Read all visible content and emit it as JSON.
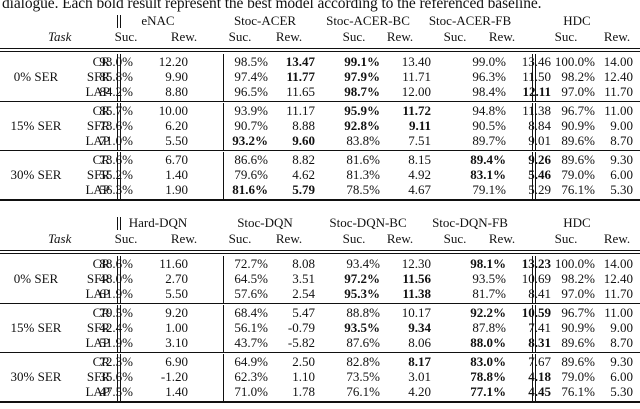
{
  "caption": "dialogue. Each bold result represent the best model according to the referenced baseline.",
  "task_label": "Task",
  "metric_labels": {
    "suc": "Suc.",
    "rew": "Rew."
  },
  "tables": [
    {
      "models": [
        "eNAC",
        "Stoc-ACER",
        "Stoc-ACER-BC",
        "Stoc-ACER-FB",
        "HDC"
      ],
      "groups": [
        {
          "label": "0% SER",
          "rows": [
            {
              "task": "CR",
              "cells": [
                [
                  "93.0%",
                  0
                ],
                [
                  "12.20",
                  0
                ],
                [
                  "98.5%",
                  0
                ],
                [
                  "13.47",
                  1
                ],
                [
                  "99.1%",
                  1
                ],
                [
                  "13.40",
                  0
                ],
                [
                  "99.0%",
                  0
                ],
                [
                  "13.46",
                  0
                ],
                [
                  "100.0%",
                  0
                ],
                [
                  "14.00",
                  0
                ]
              ]
            },
            {
              "task": "SFR",
              "cells": [
                [
                  "85.8%",
                  0
                ],
                [
                  "9.90",
                  0
                ],
                [
                  "97.4%",
                  0
                ],
                [
                  "11.77",
                  1
                ],
                [
                  "97.9%",
                  1
                ],
                [
                  "11.71",
                  0
                ],
                [
                  "96.3%",
                  0
                ],
                [
                  "11.50",
                  0
                ],
                [
                  "98.2%",
                  0
                ],
                [
                  "12.40",
                  0
                ]
              ]
            },
            {
              "task": "LAP",
              "cells": [
                [
                  "84.2%",
                  0
                ],
                [
                  "8.80",
                  0
                ],
                [
                  "96.5%",
                  0
                ],
                [
                  "11.65",
                  0
                ],
                [
                  "98.7%",
                  1
                ],
                [
                  "12.00",
                  0
                ],
                [
                  "98.4%",
                  0
                ],
                [
                  "12.11",
                  1
                ],
                [
                  "97.0%",
                  0
                ],
                [
                  "11.70",
                  0
                ]
              ]
            }
          ]
        },
        {
          "label": "15% SER",
          "rows": [
            {
              "task": "CR",
              "cells": [
                [
                  "85.7%",
                  0
                ],
                [
                  "10.00",
                  0
                ],
                [
                  "93.9%",
                  0
                ],
                [
                  "11.17",
                  0
                ],
                [
                  "95.9%",
                  1
                ],
                [
                  "11.72",
                  1
                ],
                [
                  "94.8%",
                  0
                ],
                [
                  "11.38",
                  0
                ],
                [
                  "96.7%",
                  0
                ],
                [
                  "11.00",
                  0
                ]
              ]
            },
            {
              "task": "SFR",
              "cells": [
                [
                  "73.6%",
                  0
                ],
                [
                  "6.20",
                  0
                ],
                [
                  "90.7%",
                  0
                ],
                [
                  "8.88",
                  0
                ],
                [
                  "92.8%",
                  1
                ],
                [
                  "9.11",
                  1
                ],
                [
                  "90.5%",
                  0
                ],
                [
                  "8.84",
                  0
                ],
                [
                  "90.9%",
                  0
                ],
                [
                  "9.00",
                  0
                ]
              ]
            },
            {
              "task": "LAP",
              "cells": [
                [
                  "71.0%",
                  0
                ],
                [
                  "5.50",
                  0
                ],
                [
                  "93.2%",
                  1
                ],
                [
                  "9.60",
                  1
                ],
                [
                  "83.8%",
                  0
                ],
                [
                  "7.51",
                  0
                ],
                [
                  "89.7%",
                  0
                ],
                [
                  "9.01",
                  0
                ],
                [
                  "89.6%",
                  0
                ],
                [
                  "8.70",
                  0
                ]
              ]
            }
          ]
        },
        {
          "label": "30% SER",
          "rows": [
            {
              "task": "CR",
              "cells": [
                [
                  "73.6%",
                  0
                ],
                [
                  "6.70",
                  0
                ],
                [
                  "86.6%",
                  0
                ],
                [
                  "8.82",
                  0
                ],
                [
                  "81.6%",
                  0
                ],
                [
                  "8.15",
                  0
                ],
                [
                  "89.4%",
                  1
                ],
                [
                  "9.26",
                  1
                ],
                [
                  "89.6%",
                  0
                ],
                [
                  "9.30",
                  0
                ]
              ]
            },
            {
              "task": "SFR",
              "cells": [
                [
                  "55.2%",
                  0
                ],
                [
                  "1.40",
                  0
                ],
                [
                  "79.6%",
                  0
                ],
                [
                  "4.62",
                  0
                ],
                [
                  "81.3%",
                  0
                ],
                [
                  "4.92",
                  0
                ],
                [
                  "83.1%",
                  1
                ],
                [
                  "5.46",
                  1
                ],
                [
                  "79.0%",
                  0
                ],
                [
                  "6.00",
                  0
                ]
              ]
            },
            {
              "task": "LAP",
              "cells": [
                [
                  "56.3%",
                  0
                ],
                [
                  "1.90",
                  0
                ],
                [
                  "81.6%",
                  1
                ],
                [
                  "5.79",
                  1
                ],
                [
                  "78.5%",
                  0
                ],
                [
                  "4.67",
                  0
                ],
                [
                  "79.1%",
                  0
                ],
                [
                  "5.29",
                  0
                ],
                [
                  "76.1%",
                  0
                ],
                [
                  "5.30",
                  0
                ]
              ]
            }
          ]
        }
      ]
    },
    {
      "models": [
        "Hard-DQN",
        "Stoc-DQN",
        "Stoc-DQN-BC",
        "Stoc-DQN-FB",
        "HDC"
      ],
      "groups": [
        {
          "label": "0% SER",
          "rows": [
            {
              "task": "CR",
              "cells": [
                [
                  "88.6%",
                  0
                ],
                [
                  "11.60",
                  0
                ],
                [
                  "72.7%",
                  0
                ],
                [
                  "8.08",
                  0
                ],
                [
                  "93.4%",
                  0
                ],
                [
                  "12.30",
                  0
                ],
                [
                  "98.1%",
                  1
                ],
                [
                  "13.23",
                  1
                ],
                [
                  "100.0%",
                  0
                ],
                [
                  "14.00",
                  0
                ]
              ]
            },
            {
              "task": "SFR",
              "cells": [
                [
                  "48.0%",
                  0
                ],
                [
                  "2.70",
                  0
                ],
                [
                  "64.5%",
                  0
                ],
                [
                  "3.51",
                  0
                ],
                [
                  "97.2%",
                  1
                ],
                [
                  "11.56",
                  1
                ],
                [
                  "93.5%",
                  0
                ],
                [
                  "10.69",
                  0
                ],
                [
                  "98.2%",
                  0
                ],
                [
                  "12.40",
                  0
                ]
              ]
            },
            {
              "task": "LAP",
              "cells": [
                [
                  "61.9%",
                  0
                ],
                [
                  "5.50",
                  0
                ],
                [
                  "57.6%",
                  0
                ],
                [
                  "2.54",
                  0
                ],
                [
                  "95.3%",
                  1
                ],
                [
                  "11.38",
                  1
                ],
                [
                  "81.7%",
                  0
                ],
                [
                  "8.41",
                  0
                ],
                [
                  "97.0%",
                  0
                ],
                [
                  "11.70",
                  0
                ]
              ]
            }
          ]
        },
        {
          "label": "15% SER",
          "rows": [
            {
              "task": "CR",
              "cells": [
                [
                  "79.5%",
                  0
                ],
                [
                  "9.20",
                  0
                ],
                [
                  "68.4%",
                  0
                ],
                [
                  "5.47",
                  0
                ],
                [
                  "88.8%",
                  0
                ],
                [
                  "10.17",
                  0
                ],
                [
                  "92.2%",
                  1
                ],
                [
                  "10.59",
                  1
                ],
                [
                  "96.7%",
                  0
                ],
                [
                  "11.00",
                  0
                ]
              ]
            },
            {
              "task": "SFR",
              "cells": [
                [
                  "42.4%",
                  0
                ],
                [
                  "1.00",
                  0
                ],
                [
                  "56.1%",
                  0
                ],
                [
                  "-0.79",
                  0
                ],
                [
                  "93.5%",
                  1
                ],
                [
                  "9.34",
                  1
                ],
                [
                  "87.8%",
                  0
                ],
                [
                  "7.41",
                  0
                ],
                [
                  "90.9%",
                  0
                ],
                [
                  "9.00",
                  0
                ]
              ]
            },
            {
              "task": "LAP",
              "cells": [
                [
                  "51.9%",
                  0
                ],
                [
                  "3.10",
                  0
                ],
                [
                  "43.7%",
                  0
                ],
                [
                  "-5.82",
                  0
                ],
                [
                  "87.6%",
                  0
                ],
                [
                  "8.06",
                  0
                ],
                [
                  "88.0%",
                  1
                ],
                [
                  "8.31",
                  1
                ],
                [
                  "89.6%",
                  0
                ],
                [
                  "8.70",
                  0
                ]
              ]
            }
          ]
        },
        {
          "label": "30% SER",
          "rows": [
            {
              "task": "CR",
              "cells": [
                [
                  "72.3%",
                  0
                ],
                [
                  "6.90",
                  0
                ],
                [
                  "64.9%",
                  0
                ],
                [
                  "2.50",
                  0
                ],
                [
                  "82.8%",
                  0
                ],
                [
                  "8.17",
                  1
                ],
                [
                  "83.0%",
                  1
                ],
                [
                  "7.67",
                  0
                ],
                [
                  "89.6%",
                  0
                ],
                [
                  "9.30",
                  0
                ]
              ]
            },
            {
              "task": "SFR",
              "cells": [
                [
                  "35.6%",
                  0
                ],
                [
                  "-1.20",
                  0
                ],
                [
                  "62.3%",
                  0
                ],
                [
                  "1.10",
                  0
                ],
                [
                  "73.5%",
                  0
                ],
                [
                  "3.01",
                  0
                ],
                [
                  "78.8%",
                  1
                ],
                [
                  "4.18",
                  1
                ],
                [
                  "79.0%",
                  0
                ],
                [
                  "6.00",
                  0
                ]
              ]
            },
            {
              "task": "LAP",
              "cells": [
                [
                  "47.5%",
                  0
                ],
                [
                  "1.40",
                  0
                ],
                [
                  "71.0%",
                  0
                ],
                [
                  "1.78",
                  0
                ],
                [
                  "76.1%",
                  0
                ],
                [
                  "4.20",
                  0
                ],
                [
                  "77.1%",
                  1
                ],
                [
                  "4.45",
                  1
                ],
                [
                  "76.1%",
                  0
                ],
                [
                  "5.30",
                  0
                ]
              ]
            }
          ]
        }
      ]
    }
  ]
}
